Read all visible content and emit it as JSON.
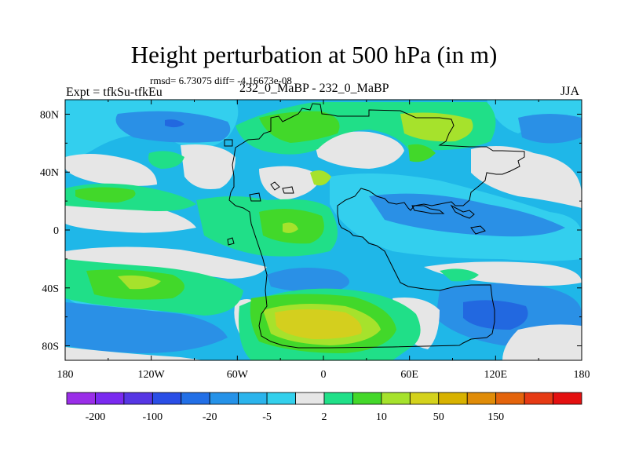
{
  "title": "Height perturbation at 500 hPa (in m)",
  "stats": "rmsd= 6.73075 diff= -4.16673e-08",
  "experiment": "Expt = tfkSu-tfkEu",
  "center_label": "232_0_MaBP - 232_0_MaBP",
  "season": "JJA",
  "axes": {
    "x_ticks": [
      {
        "lon": -180,
        "label": "180"
      },
      {
        "lon": -120,
        "label": "120W"
      },
      {
        "lon": -60,
        "label": "60W"
      },
      {
        "lon": 0,
        "label": "0"
      },
      {
        "lon": 60,
        "label": "60E"
      },
      {
        "lon": 120,
        "label": "120E"
      },
      {
        "lon": 180,
        "label": "180"
      }
    ],
    "y_ticks": [
      {
        "lat": 80,
        "label": "80N"
      },
      {
        "lat": 40,
        "label": "40N"
      },
      {
        "lat": 0,
        "label": "0"
      },
      {
        "lat": -40,
        "label": "40S"
      },
      {
        "lat": -80,
        "label": "80S"
      }
    ]
  },
  "colorbar": {
    "colors": [
      "#9a2ee8",
      "#7a2af0",
      "#5636e4",
      "#2a4ee6",
      "#226fe6",
      "#2592e8",
      "#2bb4ec",
      "#33d0ec",
      "#e6e6e6",
      "#20e088",
      "#44d82a",
      "#a6e22c",
      "#d4d21c",
      "#d8b200",
      "#e08c08",
      "#e4640c",
      "#e63a14",
      "#e41010"
    ],
    "labels": [
      {
        "index": 1,
        "text": "-200"
      },
      {
        "index": 3,
        "text": "-100"
      },
      {
        "index": 5,
        "text": "-20"
      },
      {
        "index": 7,
        "text": "-5"
      },
      {
        "index": 9,
        "text": "2"
      },
      {
        "index": 11,
        "text": "10"
      },
      {
        "index": 13,
        "text": "50"
      },
      {
        "index": 15,
        "text": "150"
      }
    ]
  },
  "field_colors": {
    "background": "#1fb7e8",
    "near_zero": "#e6e6e6",
    "weak_neg": "#33cfee",
    "mod_neg": "#2a90e6",
    "strong_neg": "#2268e0",
    "weak_pos": "#20df88",
    "mod_pos": "#42d82a",
    "strong_pos": "#a6e22c",
    "max_pos": "#d4cf1e"
  }
}
